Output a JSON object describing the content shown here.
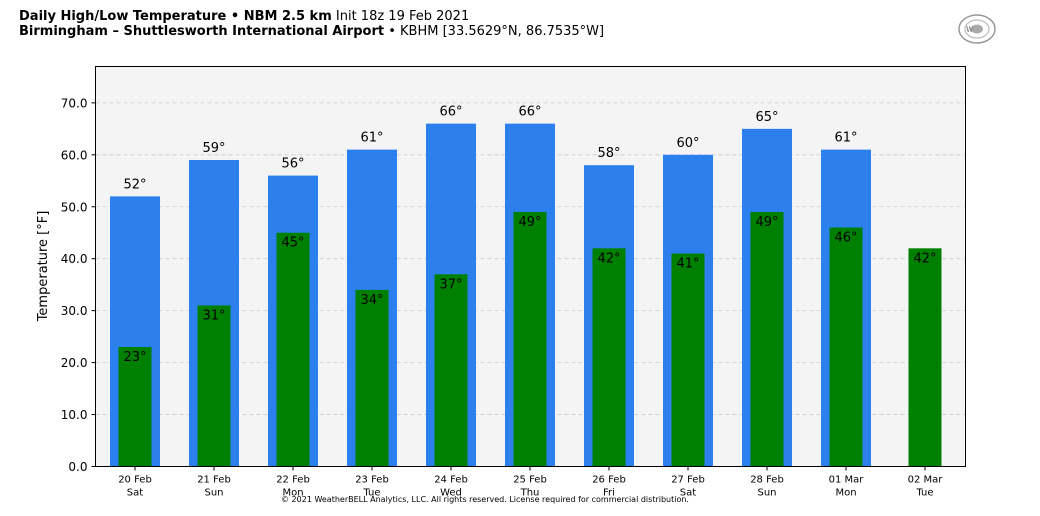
{
  "header": {
    "line1_bold": "Daily High/Low Temperature • NBM 2.5 km",
    "line1_normal": "Init 18z 19 Feb 2021",
    "line2_bold": "Birmingham – Shuttlesworth International Airport",
    "line2_normal": "• KBHM [33.5629°N, 86.7535°W]"
  },
  "logo": {
    "text": "WeatherBELL"
  },
  "copyright": "© 2021 WeatherBELL Analytics, LLC. All rights reserved. License required for commercial distribution.",
  "colors": {
    "high": "#2b80ee",
    "low": "#008000",
    "plot_bg": "#f4f4f4",
    "grid": "#cccccc"
  },
  "chart_data": {
    "type": "bar",
    "ylabel": "Temperature [°F]",
    "ylim": [
      0,
      77
    ],
    "yticks": [
      "0.0",
      "10.0",
      "20.0",
      "30.0",
      "40.0",
      "50.0",
      "60.0",
      "70.0"
    ],
    "grid": true,
    "categories": [
      [
        "20 Feb",
        "Sat"
      ],
      [
        "21 Feb",
        "Sun"
      ],
      [
        "22 Feb",
        "Mon"
      ],
      [
        "23 Feb",
        "Tue"
      ],
      [
        "24 Feb",
        "Wed"
      ],
      [
        "25 Feb",
        "Thu"
      ],
      [
        "26 Feb",
        "Fri"
      ],
      [
        "27 Feb",
        "Sat"
      ],
      [
        "28 Feb",
        "Sun"
      ],
      [
        "01 Mar",
        "Mon"
      ],
      [
        "02 Mar",
        "Tue"
      ]
    ],
    "series": [
      {
        "key": "high",
        "values": [
          52,
          59,
          56,
          61,
          66,
          66,
          58,
          60,
          65,
          61,
          null
        ],
        "labels": [
          "52°",
          "59°",
          "56°",
          "61°",
          "66°",
          "66°",
          "58°",
          "60°",
          "65°",
          "61°",
          ""
        ]
      },
      {
        "key": "low",
        "values": [
          23,
          31,
          45,
          34,
          37,
          49,
          42,
          41,
          49,
          46,
          42
        ],
        "labels": [
          "23°",
          "31°",
          "45°",
          "34°",
          "37°",
          "49°",
          "42°",
          "41°",
          "49°",
          "46°",
          "42°"
        ]
      }
    ]
  }
}
